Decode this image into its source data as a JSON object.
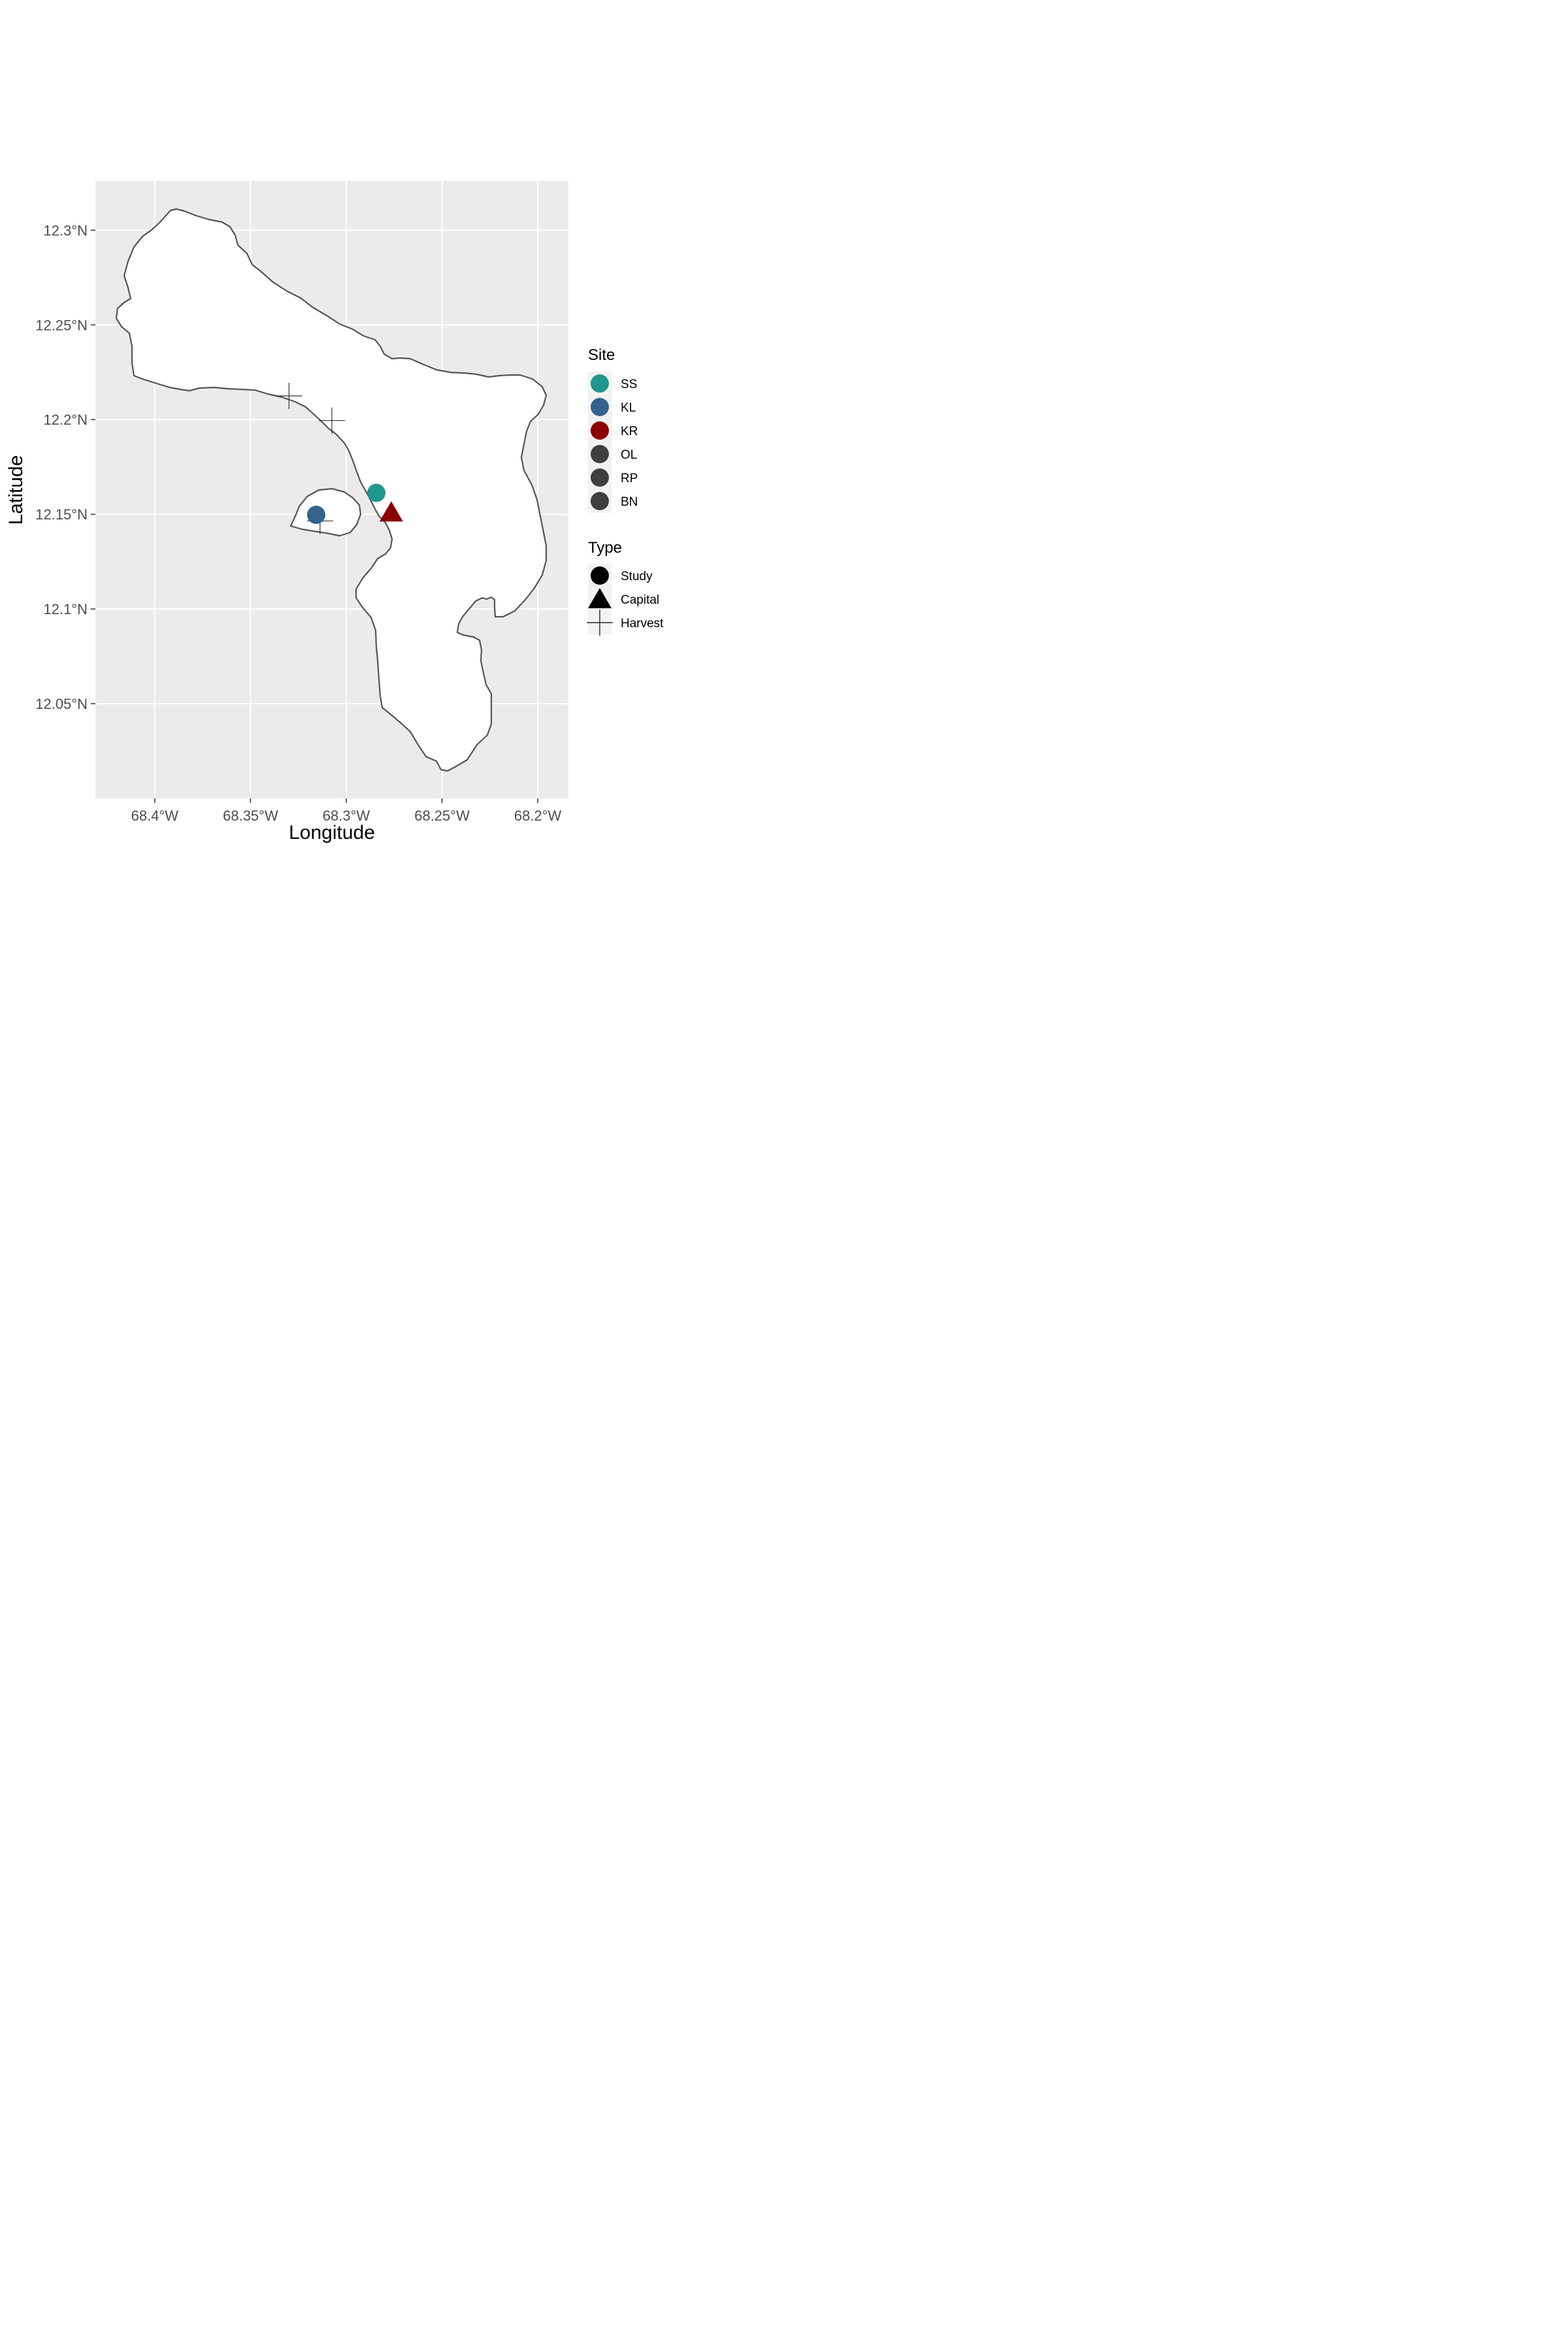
{
  "map": {
    "xlabel": "Longitude",
    "ylabel": "Latitude",
    "x_ticks": [
      {
        "lon": -68.4,
        "label": "68.4°W"
      },
      {
        "lon": -68.35,
        "label": "68.35°W"
      },
      {
        "lon": -68.3,
        "label": "68.3°W"
      },
      {
        "lon": -68.25,
        "label": "68.25°W"
      },
      {
        "lon": -68.2,
        "label": "68.2°W"
      }
    ],
    "y_ticks": [
      {
        "lat": 12.3,
        "label": "12.3°N"
      },
      {
        "lat": 12.25,
        "label": "12.25°N"
      },
      {
        "lat": 12.2,
        "label": "12.2°N"
      },
      {
        "lat": 12.15,
        "label": "12.15°N"
      },
      {
        "lat": 12.1,
        "label": "12.1°N"
      },
      {
        "lat": 12.05,
        "label": "12.05°N"
      }
    ],
    "xlim": [
      -68.431,
      -68.184
    ],
    "ylim": [
      12.0,
      12.326
    ],
    "colors": {
      "panel_background": "#ebebeb",
      "gridline": "#ffffff",
      "land_fill": "#ffffff",
      "coastline": "#555555",
      "SS": "#21968c",
      "KL": "#33638d",
      "KR": "#8b0000",
      "OL": "#3f3f3f",
      "RP": "#3f3f3f",
      "BN": "#3f3f3f",
      "harvest": "#333333"
    },
    "points": [
      {
        "site": "SS",
        "type": "Study",
        "lon": -68.2843,
        "lat": 12.1613
      },
      {
        "site": "KL",
        "type": "Study",
        "lon": -68.3157,
        "lat": 12.1497
      },
      {
        "site": "KR",
        "type": "Capital",
        "lon": -68.2765,
        "lat": 12.151
      },
      {
        "type": "Harvest",
        "lon": -68.3299,
        "lat": 12.2125
      },
      {
        "type": "Harvest",
        "lon": -68.3075,
        "lat": 12.1995
      },
      {
        "type": "Harvest",
        "lon": -68.3137,
        "lat": 12.1465
      }
    ]
  },
  "legend": {
    "site_title": "Site",
    "site_items": [
      "SS",
      "KL",
      "KR",
      "OL",
      "RP",
      "BN"
    ],
    "type_title": "Type",
    "type_items": [
      {
        "label": "Study",
        "shape": "circle"
      },
      {
        "label": "Capital",
        "shape": "triangle"
      },
      {
        "label": "Harvest",
        "shape": "cross"
      }
    ]
  }
}
